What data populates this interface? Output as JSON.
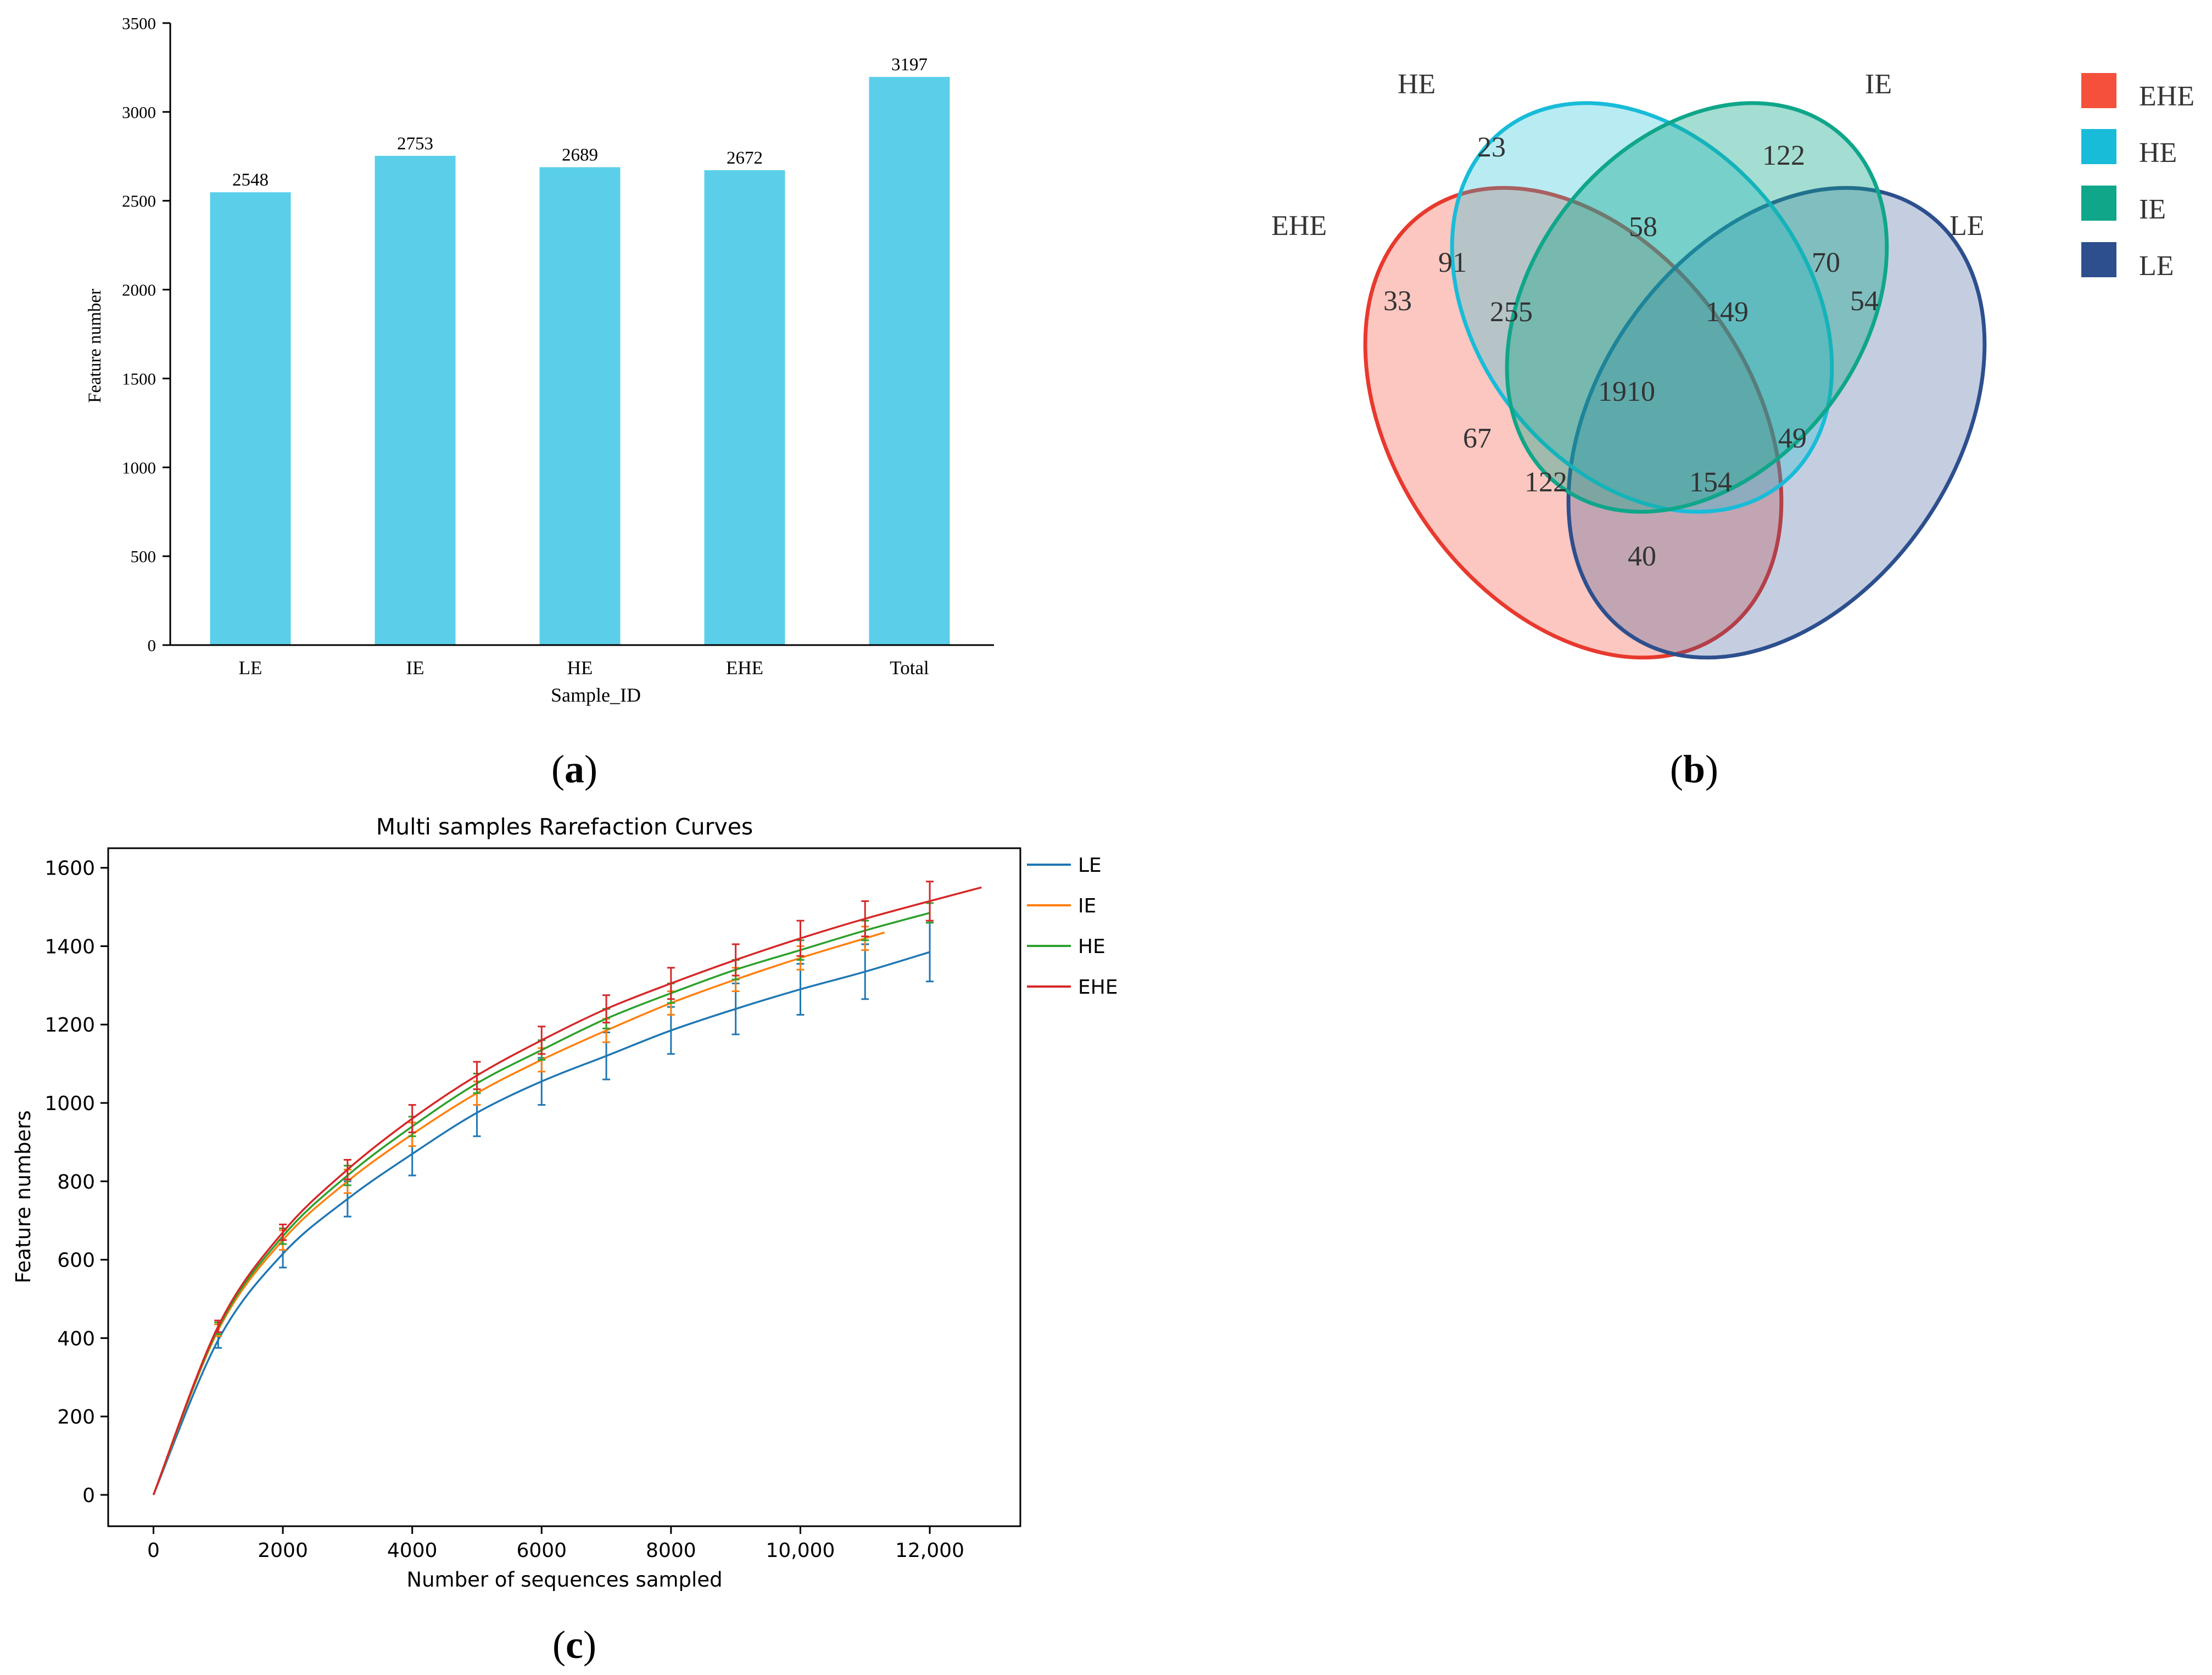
{
  "chart_data": [
    {
      "id": "a",
      "type": "bar",
      "panel_label": "(a)",
      "panel_letter": "a",
      "title": "",
      "xlabel": "Sample_ID",
      "ylabel": "Feature number",
      "categories": [
        "LE",
        "IE",
        "HE",
        "EHE",
        "Total"
      ],
      "values": [
        2548,
        2753,
        2689,
        2672,
        3197
      ],
      "value_labels": [
        "2548",
        "2753",
        "2689",
        "2672",
        "3197"
      ],
      "ylim": [
        0,
        3500
      ],
      "yticks": [
        0,
        500,
        1000,
        1500,
        2000,
        2500,
        3000,
        3500
      ],
      "ytick_labels": [
        "0",
        "500",
        "1000",
        "1500",
        "2000",
        "2500",
        "3000",
        "3500"
      ],
      "bar_color": "#5BCFEA",
      "grid": false
    },
    {
      "id": "b",
      "type": "venn",
      "panel_label": "(b)",
      "panel_letter": "b",
      "sets": [
        {
          "name": "EHE",
          "color": "#F4503C"
        },
        {
          "name": "HE",
          "color": "#18BCD8"
        },
        {
          "name": "IE",
          "color": "#0FA68A"
        },
        {
          "name": "LE",
          "color": "#2D4F8E"
        }
      ],
      "set_labels": [
        "HE",
        "IE",
        "EHE",
        "LE"
      ],
      "legend_labels": [
        "EHE",
        "HE",
        "IE",
        "LE"
      ],
      "regions": [
        {
          "sets": [
            "HE"
          ],
          "value": 23,
          "label": "23"
        },
        {
          "sets": [
            "IE"
          ],
          "value": 122,
          "label": "122"
        },
        {
          "sets": [
            "HE",
            "IE"
          ],
          "value": 58,
          "label": "58"
        },
        {
          "sets": [
            "EHE",
            "HE"
          ],
          "value": 91,
          "label": "91"
        },
        {
          "sets": [
            "IE",
            "LE"
          ],
          "value": 70,
          "label": "70"
        },
        {
          "sets": [
            "EHE"
          ],
          "value": 33,
          "label": "33"
        },
        {
          "sets": [
            "EHE",
            "HE",
            "IE"
          ],
          "value": 255,
          "label": "255"
        },
        {
          "sets": [
            "HE",
            "IE",
            "LE"
          ],
          "value": 149,
          "label": "149"
        },
        {
          "sets": [
            "LE"
          ],
          "value": 54,
          "label": "54"
        },
        {
          "sets": [
            "EHE",
            "HE",
            "IE",
            "LE"
          ],
          "value": 1910,
          "label": "1910"
        },
        {
          "sets": [
            "EHE",
            "IE"
          ],
          "value": 67,
          "label": "67"
        },
        {
          "sets": [
            "HE",
            "LE"
          ],
          "value": 49,
          "label": "49"
        },
        {
          "sets": [
            "EHE",
            "IE",
            "LE"
          ],
          "value": 122,
          "label": "122"
        },
        {
          "sets": [
            "EHE",
            "HE",
            "LE"
          ],
          "value": 154,
          "label": "154"
        },
        {
          "sets": [
            "EHE",
            "LE"
          ],
          "value": 40,
          "label": "40"
        }
      ]
    },
    {
      "id": "c",
      "type": "line",
      "panel_label": "(c)",
      "panel_letter": "c",
      "title": "Multi samples Rarefaction Curves",
      "xlabel": "Number of sequences sampled",
      "ylabel": "Feature numbers",
      "xlim": [
        -700,
        13400
      ],
      "ylim": [
        -80,
        1650
      ],
      "xticks": [
        0,
        2000,
        4000,
        6000,
        8000,
        10000,
        12000
      ],
      "xtick_labels": [
        "0",
        "2000",
        "4000",
        "6000",
        "8000",
        "10,000",
        "12,000"
      ],
      "yticks": [
        0,
        200,
        400,
        600,
        800,
        1000,
        1200,
        1400,
        1600
      ],
      "ytick_labels": [
        "0",
        "200",
        "400",
        "600",
        "800",
        "1000",
        "1200",
        "1400",
        "1600"
      ],
      "legend_position": "outside-right-top",
      "grid": false,
      "series": [
        {
          "name": "LE",
          "color": "#1F77B4",
          "x": [
            0,
            1000,
            2000,
            3000,
            4000,
            5000,
            6000,
            7000,
            8000,
            9000,
            10000,
            11000,
            12000
          ],
          "values": [
            0,
            395,
            615,
            755,
            870,
            975,
            1055,
            1120,
            1185,
            1240,
            1290,
            1335,
            1385
          ],
          "error": [
            0,
            20,
            35,
            45,
            55,
            60,
            60,
            60,
            60,
            65,
            65,
            70,
            75
          ]
        },
        {
          "name": "IE",
          "color": "#FF7F0E",
          "x": [
            0,
            1000,
            2000,
            3000,
            4000,
            5000,
            6000,
            7000,
            8000,
            9000,
            10000,
            11000,
            11300
          ],
          "values": [
            0,
            420,
            650,
            800,
            920,
            1025,
            1110,
            1185,
            1255,
            1315,
            1370,
            1420,
            1435
          ],
          "error": [
            0,
            15,
            25,
            30,
            30,
            30,
            30,
            30,
            30,
            30,
            30,
            30,
            0
          ]
        },
        {
          "name": "HE",
          "color": "#2CA02C",
          "x": [
            0,
            1000,
            2000,
            3000,
            4000,
            5000,
            6000,
            7000,
            8000,
            9000,
            10000,
            11000,
            12000
          ],
          "values": [
            0,
            425,
            660,
            815,
            940,
            1050,
            1135,
            1215,
            1280,
            1340,
            1390,
            1440,
            1485
          ],
          "error": [
            0,
            15,
            20,
            25,
            25,
            25,
            25,
            25,
            25,
            25,
            25,
            25,
            25
          ]
        },
        {
          "name": "EHE",
          "color": "#D62728",
          "x": [
            0,
            1000,
            2000,
            3000,
            4000,
            5000,
            6000,
            7000,
            8000,
            9000,
            10000,
            11000,
            12000,
            12800
          ],
          "values": [
            0,
            430,
            670,
            830,
            960,
            1070,
            1160,
            1240,
            1305,
            1365,
            1420,
            1470,
            1515,
            1550
          ],
          "error": [
            0,
            15,
            20,
            25,
            35,
            35,
            35,
            35,
            40,
            40,
            45,
            45,
            50,
            0
          ]
        }
      ]
    }
  ]
}
